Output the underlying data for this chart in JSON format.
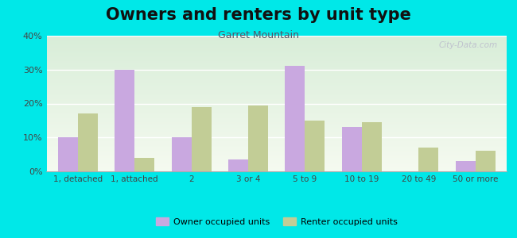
{
  "title": "Owners and renters by unit type",
  "subtitle": "Garret Mountain",
  "categories": [
    "1, detached",
    "1, attached",
    "2",
    "3 or 4",
    "5 to 9",
    "10 to 19",
    "20 to 49",
    "50 or more"
  ],
  "owner_values": [
    10,
    30,
    10,
    3.5,
    31,
    13,
    0,
    3
  ],
  "renter_values": [
    17,
    4,
    19,
    19.5,
    15,
    14.5,
    7,
    6
  ],
  "owner_color": "#c9a8e0",
  "renter_color": "#c2cd96",
  "background_outer": "#00e8e8",
  "background_plot_top": "#d8edd8",
  "background_plot_bottom": "#f5faf0",
  "ylim": [
    0,
    40
  ],
  "yticks": [
    0,
    10,
    20,
    30,
    40
  ],
  "ytick_labels": [
    "0%",
    "10%",
    "20%",
    "30%",
    "40%"
  ],
  "title_fontsize": 15,
  "subtitle_fontsize": 9,
  "legend_label_owner": "Owner occupied units",
  "legend_label_renter": "Renter occupied units",
  "bar_width": 0.35,
  "watermark": "City-Data.com",
  "title_color": "#111111",
  "subtitle_color": "#555566",
  "tick_color": "#444444",
  "watermark_color": "#bbbbcc"
}
